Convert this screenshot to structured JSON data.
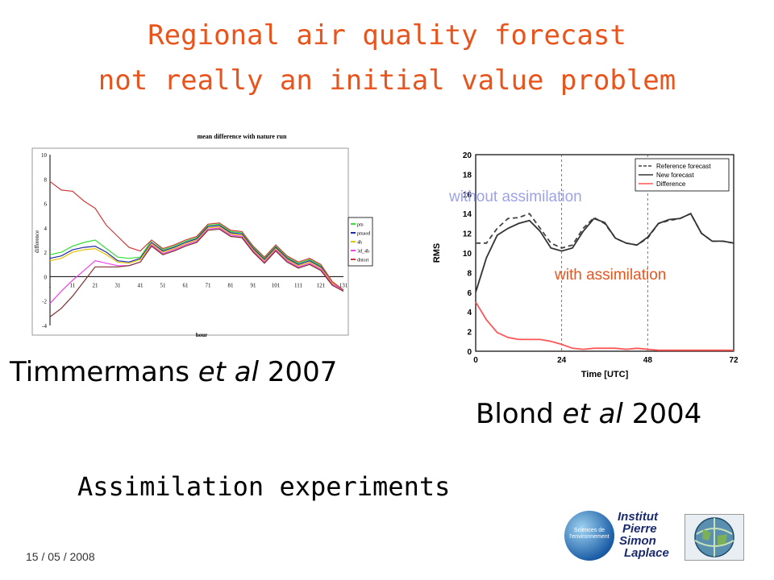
{
  "title_line1": "Regional air quality forecast",
  "title_line2": "not really an initial value problem",
  "citation1": {
    "author": "Timmermans",
    "etal": "et al",
    "year": "2007"
  },
  "citation2": {
    "author": "Blond",
    "etal": "et al",
    "year": "2004"
  },
  "subtitle": "Assimilation experiments",
  "date": "15 / 05 / 2008",
  "logos": {
    "sciences": "Sciences de l'environnement",
    "ipsl": [
      "Institut",
      "Pierre",
      "Simon",
      "Laplace"
    ]
  },
  "annotations": {
    "without": "without assimilation",
    "with": "with assimilation"
  },
  "colors": {
    "title": "#e8541c",
    "annotation_without": "#9da3e6",
    "annotation_with": "#e8541c"
  },
  "chart_data": [
    {
      "type": "line",
      "title": "mean difference with nature run",
      "xlabel": "hour",
      "ylabel": "difference",
      "xlim": [
        1,
        131
      ],
      "ylim": [
        -4,
        10
      ],
      "yticks": [
        -4,
        -2,
        0,
        2,
        4,
        6,
        8,
        10
      ],
      "xticks": [
        1,
        11,
        21,
        31,
        41,
        51,
        61,
        71,
        81,
        91,
        101,
        111,
        121,
        131
      ],
      "legend": "right",
      "x": [
        1,
        6,
        11,
        16,
        21,
        26,
        31,
        36,
        41,
        46,
        51,
        56,
        61,
        66,
        71,
        76,
        81,
        86,
        91,
        96,
        101,
        106,
        111,
        116,
        121,
        126,
        131
      ],
      "series": [
        {
          "name": "pm",
          "color": "#33dd33",
          "values": [
            1.8,
            2.0,
            2.5,
            2.8,
            3.0,
            2.3,
            1.6,
            1.5,
            1.6,
            3.0,
            2.2,
            2.5,
            2.9,
            3.2,
            4.2,
            4.3,
            3.7,
            3.6,
            2.4,
            1.5,
            2.5,
            1.6,
            1.1,
            1.4,
            0.9,
            -0.4,
            -1.1
          ]
        },
        {
          "name": "pmaod",
          "color": "#1a2aaa",
          "values": [
            1.5,
            1.7,
            2.2,
            2.4,
            2.5,
            2.0,
            1.3,
            1.2,
            1.5,
            2.8,
            2.1,
            2.4,
            2.8,
            3.1,
            4.1,
            4.2,
            3.6,
            3.5,
            2.3,
            1.4,
            2.4,
            1.5,
            1.0,
            1.3,
            0.8,
            -0.5,
            -1.1
          ]
        },
        {
          "name": "4h",
          "color": "#e8c000",
          "values": [
            1.3,
            1.5,
            2.0,
            2.2,
            2.3,
            1.8,
            1.2,
            1.1,
            1.4,
            2.7,
            2.0,
            2.3,
            2.7,
            3.0,
            4.0,
            4.1,
            3.5,
            3.4,
            2.2,
            1.3,
            2.3,
            1.4,
            0.9,
            1.2,
            0.7,
            -0.5,
            -1.1
          ]
        },
        {
          "name": "3d_4h",
          "color": "#ee44ee",
          "values": [
            -2.2,
            -1.2,
            -0.3,
            0.5,
            1.3,
            1.1,
            0.9,
            0.9,
            1.2,
            2.6,
            1.9,
            2.2,
            2.6,
            2.9,
            3.9,
            4.0,
            3.4,
            3.3,
            2.1,
            1.2,
            2.2,
            1.3,
            0.8,
            1.1,
            0.6,
            -0.6,
            -1.1
          ]
        },
        {
          "name": "dntort",
          "color": "#d03a3a",
          "values": [
            7.8,
            7.1,
            7.0,
            6.2,
            5.6,
            4.2,
            3.3,
            2.4,
            2.1,
            3.0,
            2.3,
            2.6,
            3.0,
            3.3,
            4.3,
            4.4,
            3.8,
            3.7,
            2.5,
            1.6,
            2.6,
            1.7,
            1.2,
            1.5,
            1.0,
            -0.4,
            -1.1
          ]
        },
        {
          "name": "",
          "color": "#7a3030",
          "values": [
            -3.3,
            -2.6,
            -1.6,
            -0.4,
            0.8,
            0.8,
            0.8,
            0.9,
            1.2,
            2.5,
            1.8,
            2.1,
            2.5,
            2.8,
            3.8,
            3.9,
            3.3,
            3.2,
            2.0,
            1.1,
            2.1,
            1.2,
            0.7,
            1.0,
            0.5,
            -0.7,
            -1.2
          ]
        }
      ]
    },
    {
      "type": "line",
      "title": "",
      "xlabel": "Time [UTC]",
      "ylabel": "RMS",
      "xlim": [
        0,
        72
      ],
      "ylim": [
        0,
        20
      ],
      "yticks": [
        0,
        2,
        4,
        6,
        8,
        10,
        12,
        14,
        16,
        18,
        20
      ],
      "xticks": [
        0,
        24,
        48,
        72
      ],
      "vlines": [
        24,
        48
      ],
      "legend": "top-right",
      "x": [
        0,
        3,
        6,
        9,
        12,
        15,
        18,
        21,
        24,
        27,
        30,
        33,
        36,
        39,
        42,
        45,
        48,
        51,
        54,
        57,
        60,
        63,
        66,
        69,
        72
      ],
      "series": [
        {
          "name": "Reference forecast",
          "color": "#444444",
          "dash": "6,4",
          "values": [
            11,
            11,
            12.5,
            13.5,
            13.6,
            14,
            12.5,
            11,
            10.5,
            10.8,
            12.5,
            13.6,
            13,
            11.5,
            11,
            10.8,
            11.5,
            13,
            13.3,
            13.5,
            14,
            12,
            11.2,
            11.2,
            11
          ]
        },
        {
          "name": "New forecast",
          "color": "#333333",
          "dash": "",
          "values": [
            6,
            9.5,
            11.8,
            12.5,
            13,
            13.3,
            12.2,
            10.5,
            10.2,
            10.5,
            12.2,
            13.5,
            13.1,
            11.5,
            11,
            10.8,
            11.6,
            13,
            13.4,
            13.5,
            14,
            12,
            11.2,
            11.2,
            11
          ]
        },
        {
          "name": "Difference",
          "color": "#ff5555",
          "dash": "",
          "values": [
            5,
            3.2,
            1.9,
            1.4,
            1.2,
            1.2,
            1.2,
            1.0,
            0.7,
            0.3,
            0.2,
            0.3,
            0.3,
            0.3,
            0.2,
            0.3,
            0.2,
            0.1,
            0.1,
            0.1,
            0.1,
            0.1,
            0.1,
            0.1,
            0.1
          ]
        }
      ]
    }
  ]
}
